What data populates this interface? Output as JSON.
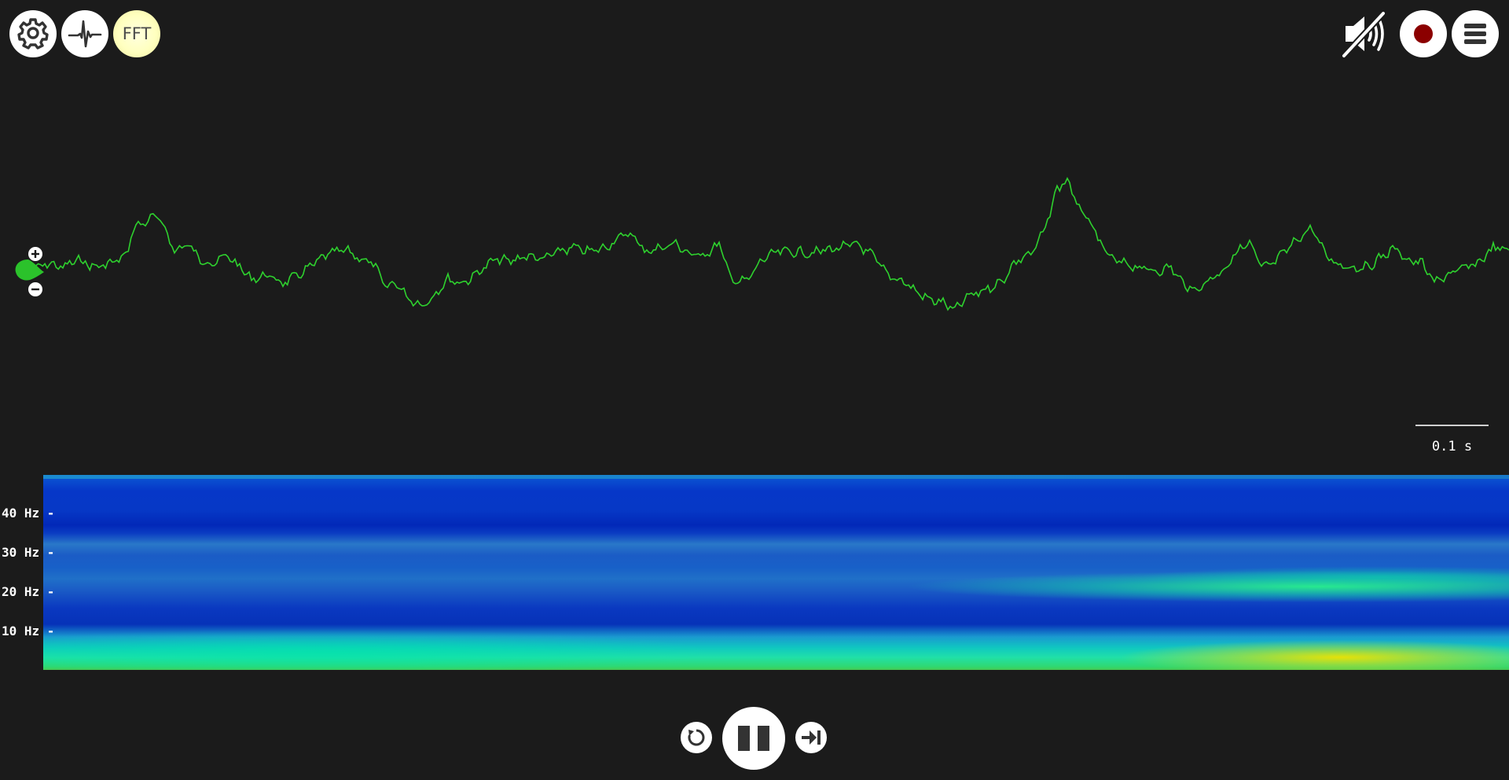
{
  "toolbar": {
    "fft_label": "FFT",
    "icons": {
      "settings": "gear-icon",
      "signal": "waveform-icon",
      "mute": "speaker-muted-icon",
      "record": "record-icon",
      "menu": "hamburger-menu-icon"
    },
    "record_color": "#8b0000"
  },
  "waveform": {
    "trace_color": "#2ed12e",
    "gain_handle_color": "#2bc22b",
    "gain_plus_icon": "plus-icon",
    "gain_minus_icon": "minus-icon"
  },
  "scale": {
    "label": "0.1 s"
  },
  "spectrogram": {
    "frequency_labels": [
      {
        "label": "40 Hz -"
      },
      {
        "label": "30 Hz -"
      },
      {
        "label": "20 Hz -"
      },
      {
        "label": "10 Hz -"
      }
    ]
  },
  "transport": {
    "reset_icon": "rewind-icon",
    "pause_icon": "pause-icon",
    "skip_icon": "skip-to-end-icon"
  }
}
